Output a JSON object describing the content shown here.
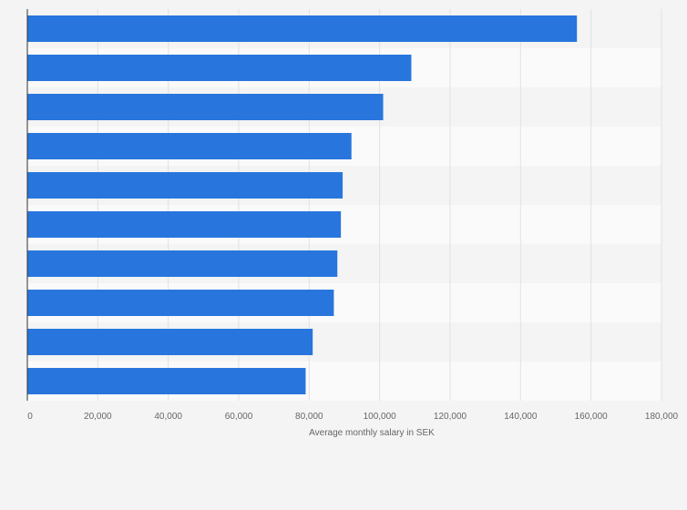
{
  "chart_data": {
    "type": "bar",
    "orientation": "horizontal",
    "categories": [
      "",
      "",
      "",
      "",
      "",
      "",
      "",
      "",
      "",
      ""
    ],
    "values": [
      156000,
      109000,
      101000,
      92000,
      89500,
      89000,
      88000,
      87000,
      81000,
      79000
    ],
    "xlabel": "Average monthly salary in SEK",
    "ylabel": "",
    "xlim": [
      0,
      180000
    ],
    "x_ticks": [
      0,
      20000,
      40000,
      60000,
      80000,
      100000,
      120000,
      140000,
      160000,
      180000
    ],
    "x_tick_labels": [
      "0",
      "20,000",
      "40,000",
      "60,000",
      "80,000",
      "100,000",
      "120,000",
      "140,000",
      "160,000",
      "180,000"
    ],
    "grid": true,
    "bar_color": "#2876dd",
    "row_band_colors": [
      "#f4f4f4",
      "#fafafa"
    ],
    "grid_color": "#e2e2e2",
    "axis_color": "#333333"
  }
}
